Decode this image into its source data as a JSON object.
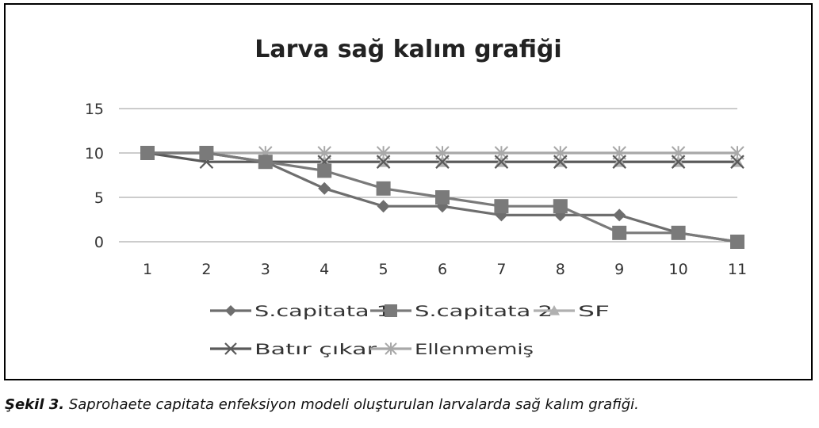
{
  "chart_data": {
    "type": "line",
    "title": "Larva sağ kalım grafiği",
    "xlabel": "",
    "ylabel": "",
    "x": [
      1,
      2,
      3,
      4,
      5,
      6,
      7,
      8,
      9,
      10,
      11
    ],
    "x_ticks": [
      "1",
      "2",
      "3",
      "4",
      "5",
      "6",
      "7",
      "8",
      "9",
      "10",
      "11"
    ],
    "ylim": [
      0,
      15
    ],
    "y_ticks": [
      "0",
      "5",
      "10",
      "15"
    ],
    "grid": true,
    "legend_position": "bottom",
    "series": [
      {
        "name": "S.capitata 1",
        "marker": "diamond",
        "color": "#6e6e6e",
        "values": [
          10,
          10,
          9,
          6,
          4,
          4,
          3,
          3,
          3,
          1,
          0
        ]
      },
      {
        "name": "S.capitata 2",
        "marker": "square",
        "color": "#7a7a7a",
        "values": [
          10,
          10,
          9,
          8,
          6,
          5,
          4,
          4,
          1,
          1,
          0
        ]
      },
      {
        "name": "SF",
        "marker": "triangle",
        "color": "#b0b0b0",
        "values": [
          10,
          10,
          9,
          9,
          9,
          9,
          9,
          9,
          9,
          9,
          9
        ]
      },
      {
        "name": "Batır çıkar",
        "marker": "x",
        "color": "#5a5a5a",
        "values": [
          10,
          9,
          9,
          9,
          9,
          9,
          9,
          9,
          9,
          9,
          9
        ]
      },
      {
        "name": "Ellenmemiş",
        "marker": "star",
        "color": "#a8a8a8",
        "values": [
          10,
          10,
          10,
          10,
          10,
          10,
          10,
          10,
          10,
          10,
          10
        ]
      }
    ]
  },
  "caption": {
    "label": "Şekil 3.",
    "text": " Saprohaete capitata enfeksiyon modeli oluşturulan larvalarda sağ kalım grafiği."
  }
}
